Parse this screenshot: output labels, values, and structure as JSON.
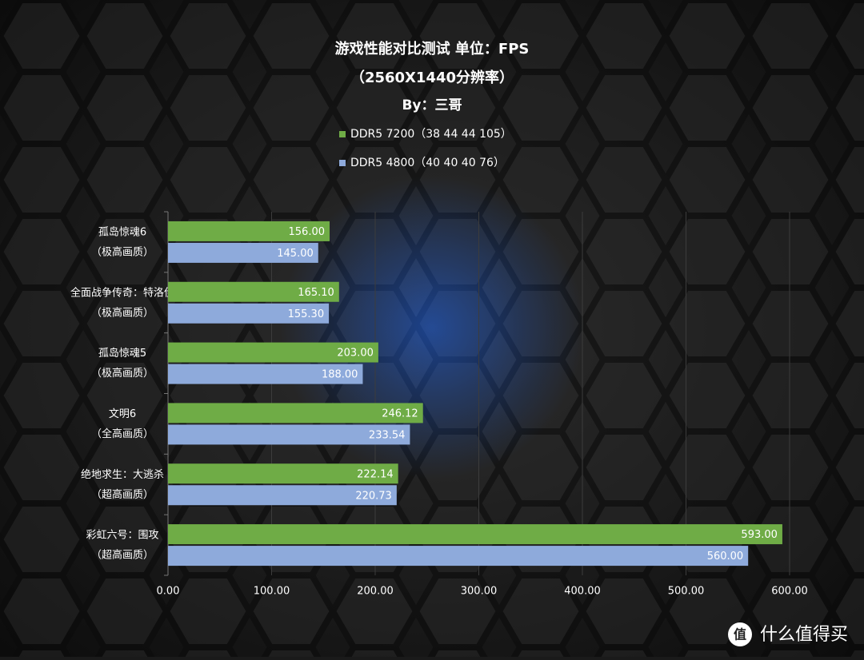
{
  "chart_data": {
    "type": "hbar",
    "title": "游戏性能对比测试 单位：FPS",
    "subtitle": "（2560X1440分辨率）",
    "byline": "By：三哥",
    "categories": [
      "孤岛惊魂6\n（极高画质）",
      "全面战争传奇：特洛伊\n（极高画质）",
      "孤岛惊魂5\n（极高画质）",
      "文明6\n（全高画质）",
      "绝地求生：大逃杀\n（超高画质）",
      "彩虹六号：围攻\n（超高画质）"
    ],
    "series": [
      {
        "name": "DDR5 7200（38 44 44 105）",
        "color": "#6fac46",
        "values": [
          156,
          165.1,
          203,
          246.12,
          222.14,
          593
        ],
        "value_labels": [
          "156.00",
          "165.10",
          "203.00",
          "246.12",
          "222.14",
          "593.00"
        ]
      },
      {
        "name": "DDR5 4800（40 40 40 76）",
        "color": "#8eaadb",
        "values": [
          145,
          155.3,
          188,
          233.54,
          220.73,
          560
        ],
        "value_labels": [
          "145.00",
          "155.30",
          "188.00",
          "233.54",
          "220.73",
          "560.00"
        ]
      }
    ],
    "xlim": [
      0,
      600
    ],
    "xticks": [
      {
        "value": 0,
        "label": "0.00"
      },
      {
        "value": 100,
        "label": "100.00"
      },
      {
        "value": 200,
        "label": "200.00"
      },
      {
        "value": 300,
        "label": "300.00"
      },
      {
        "value": 400,
        "label": "400.00"
      },
      {
        "value": 500,
        "label": "500.00"
      },
      {
        "value": 600,
        "label": "600.00"
      }
    ],
    "grid": true
  },
  "watermark": {
    "icon": "值",
    "text": "什么值得买"
  }
}
